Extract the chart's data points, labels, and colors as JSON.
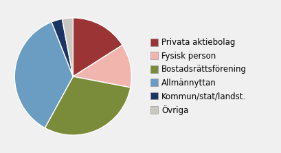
{
  "labels": [
    "Privata aktiebolag",
    "Fysisk person",
    "Bostadsrättsförening",
    "Allmännyttan",
    "Kommun/stat/landst.",
    "Övriga"
  ],
  "values": [
    16,
    12,
    30,
    36,
    3,
    3
  ],
  "colors": [
    "#9B3535",
    "#F2B5AE",
    "#7A8C3A",
    "#6B9DC2",
    "#1C3464",
    "#C8C8C0"
  ],
  "startangle": 90,
  "background_color": "#f0f0f0",
  "legend_fontsize": 8.5,
  "figsize": [
    4.09,
    2.22
  ],
  "dpi": 100
}
